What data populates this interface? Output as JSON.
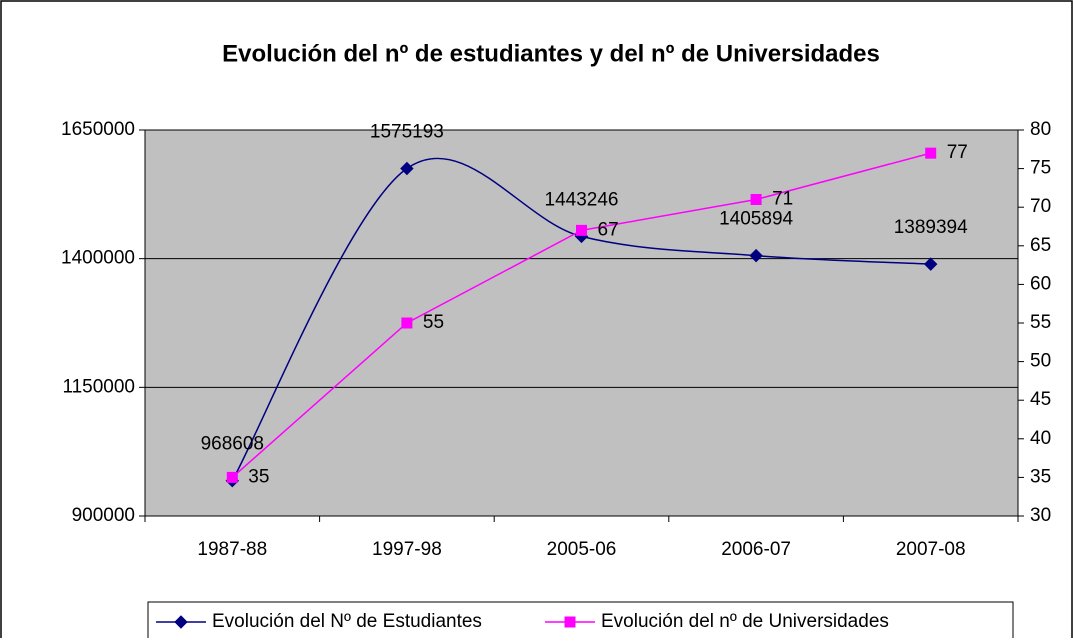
{
  "chart_data": {
    "type": "line",
    "title": "Evolución del nº de estudiantes y del nº de Universidades",
    "categories": [
      "1987-88",
      "1997-98",
      "2005-06",
      "2006-07",
      "2007-08"
    ],
    "series": [
      {
        "name": "Evolución del Nº de Estudiantes",
        "color": "#000080",
        "marker": "diamond",
        "smooth": true,
        "values": [
          968608,
          1575193,
          1443246,
          1405894,
          1389394
        ]
      },
      {
        "name": "Evolución del nº de Universidades",
        "color": "#ff00ff",
        "marker": "square",
        "axis": "y2",
        "values": [
          35,
          55,
          67,
          71,
          77
        ]
      }
    ],
    "ylim": [
      900000,
      1650000
    ],
    "yticks": [
      900000,
      1150000,
      1400000,
      1650000
    ],
    "y2lim": [
      30,
      80
    ],
    "y2ticks": [
      30,
      35,
      40,
      45,
      50,
      55,
      60,
      65,
      70,
      75,
      80
    ],
    "grid": true,
    "legend": "bottom",
    "plot_background": "#c0c0c0"
  }
}
